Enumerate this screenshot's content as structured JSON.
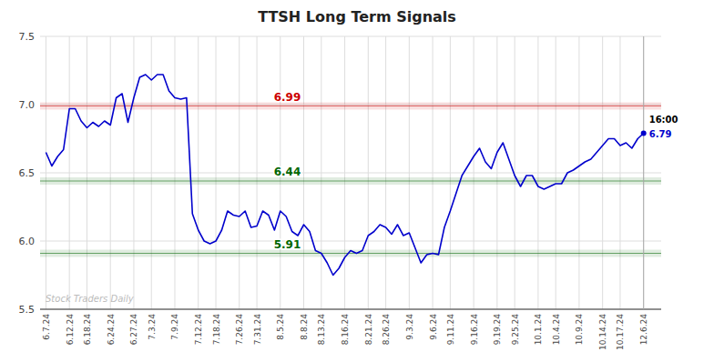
{
  "chart_data": {
    "type": "line",
    "title": "TTSH Long Term Signals",
    "categories": [
      "6.7.24",
      null,
      null,
      null,
      "6.12.24",
      null,
      null,
      "6.18.24",
      null,
      null,
      null,
      "6.24.24",
      null,
      null,
      null,
      "6.27.24",
      null,
      null,
      "7.3.24",
      null,
      null,
      null,
      "7.9.24",
      null,
      null,
      null,
      "7.12.24",
      null,
      null,
      "7.18.24",
      null,
      null,
      null,
      "7.26.24",
      null,
      null,
      "7.31.24",
      null,
      null,
      null,
      "8.5.24",
      null,
      null,
      null,
      "8.8.24",
      null,
      null,
      "8.13.24",
      null,
      null,
      null,
      "8.16.24",
      null,
      null,
      null,
      "8.21.24",
      null,
      null,
      "8.26.24",
      null,
      null,
      null,
      "9.3.24",
      null,
      null,
      null,
      "9.6.24",
      null,
      null,
      "9.11.24",
      null,
      null,
      null,
      "9.16.24",
      null,
      null,
      null,
      "9.19.24",
      null,
      null,
      "9.25.24",
      null,
      null,
      null,
      "10.1.24",
      null,
      null,
      "10.4.24",
      null,
      null,
      null,
      "10.9.24",
      null,
      null,
      null,
      "10.14.24",
      null,
      null,
      "10.17.24",
      null,
      null,
      null,
      "12.6.24"
    ],
    "series": [
      {
        "color": "#0000cc",
        "values": [
          6.65,
          6.55,
          6.62,
          6.67,
          6.97,
          6.97,
          6.88,
          6.83,
          6.87,
          6.84,
          6.88,
          6.85,
          7.05,
          7.08,
          6.87,
          7.05,
          7.2,
          7.22,
          7.18,
          7.22,
          7.22,
          7.1,
          7.05,
          7.04,
          7.05,
          6.2,
          6.08,
          6.0,
          5.98,
          6.0,
          6.08,
          6.22,
          6.19,
          6.18,
          6.22,
          6.1,
          6.11,
          6.22,
          6.19,
          6.08,
          6.22,
          6.18,
          6.07,
          6.04,
          6.12,
          6.07,
          5.93,
          5.91,
          5.84,
          5.75,
          5.8,
          5.88,
          5.93,
          5.91,
          5.93,
          6.04,
          6.07,
          6.12,
          6.1,
          6.05,
          6.12,
          6.04,
          6.06,
          5.95,
          5.84,
          5.9,
          5.91,
          5.9,
          6.1,
          6.22,
          6.35,
          6.48,
          6.55,
          6.62,
          6.68,
          6.58,
          6.53,
          6.65,
          6.72,
          6.6,
          6.48,
          6.4,
          6.48,
          6.48,
          6.4,
          6.38,
          6.4,
          6.42,
          6.42,
          6.5,
          6.52,
          6.55,
          6.58,
          6.6,
          6.65,
          6.7,
          6.75,
          6.75,
          6.7,
          6.72,
          6.68,
          6.75,
          6.79
        ]
      }
    ],
    "reference_lines": [
      {
        "value": 6.99,
        "color": "#cc0000"
      },
      {
        "value": 6.44,
        "color": "#006600"
      },
      {
        "value": 5.91,
        "color": "#006600"
      }
    ],
    "annotations": [
      {
        "text": "16:00",
        "color": "#000000"
      },
      {
        "text": "6.79",
        "color": "#0000cc"
      },
      {
        "text": "Stock Traders Daily",
        "color": "#bbbbbb"
      }
    ],
    "ylim": [
      5.5,
      7.5
    ],
    "yticks": [
      5.5,
      {
        "value": 6.0,
        "label": "6.0"
      },
      6.5,
      {
        "value": 7.0,
        "label": "7.0"
      },
      7.5
    ],
    "grid": true
  }
}
